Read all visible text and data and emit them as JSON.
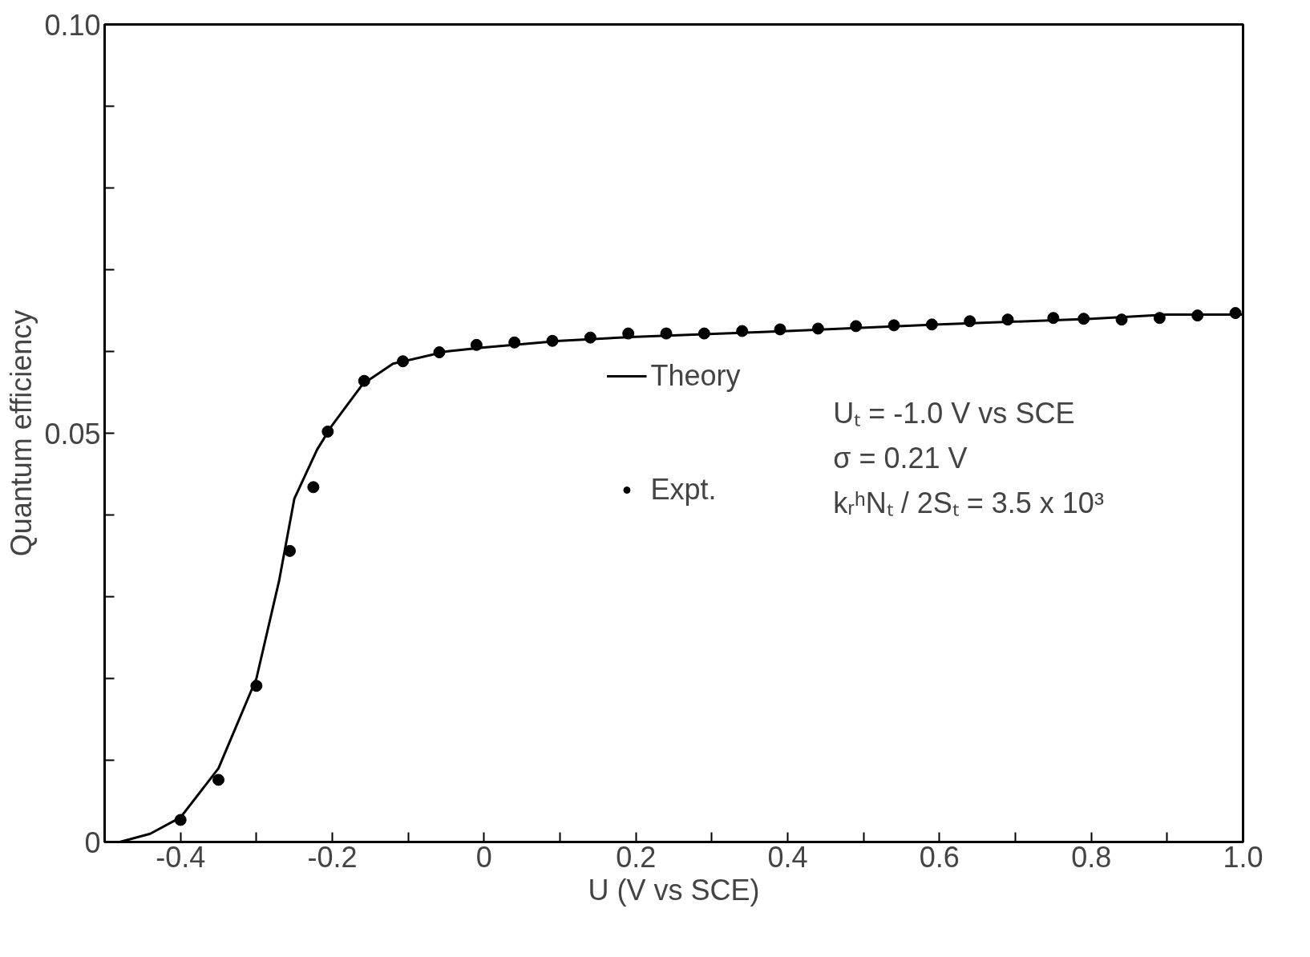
{
  "chart_data": {
    "type": "scatter",
    "xlabel": "U (V vs SCE)",
    "ylabel": "Quantum efficiency",
    "xlim": [
      -0.5,
      1.0
    ],
    "ylim": [
      0,
      0.1
    ],
    "xticks": [
      {
        "value": -0.4,
        "label": "-0.4"
      },
      {
        "value": -0.3,
        "label": null
      },
      {
        "value": -0.2,
        "label": "-0.2"
      },
      {
        "value": -0.1,
        "label": null
      },
      {
        "value": 0,
        "label": "0"
      },
      {
        "value": 0.1,
        "label": null
      },
      {
        "value": 0.2,
        "label": "0.2"
      },
      {
        "value": 0.3,
        "label": null
      },
      {
        "value": 0.4,
        "label": "0.4"
      },
      {
        "value": 0.5,
        "label": null
      },
      {
        "value": 0.6,
        "label": "0.6"
      },
      {
        "value": 0.7,
        "label": null
      },
      {
        "value": 0.8,
        "label": "0.8"
      },
      {
        "value": 0.9,
        "label": null
      },
      {
        "value": 1.0,
        "label": "1.0"
      }
    ],
    "yticks": [
      0,
      {
        "value": 0.01,
        "label": null
      },
      {
        "value": 0.02,
        "label": null
      },
      {
        "value": 0.03,
        "label": null
      },
      {
        "value": 0.04,
        "label": null
      },
      {
        "value": 0.05,
        "label": "0.05"
      },
      {
        "value": 0.06,
        "label": null
      },
      {
        "value": 0.07,
        "label": null
      },
      {
        "value": 0.08,
        "label": null
      },
      {
        "value": 0.09,
        "label": null
      },
      {
        "value": 0.1,
        "label": "0.10"
      }
    ],
    "grid": false,
    "legend": "center",
    "series": [
      {
        "name": "Theory",
        "type": "line",
        "color": "#000000",
        "line_style": "solid",
        "marker": "none",
        "x": [
          -0.48,
          -0.44,
          -0.4,
          -0.35,
          -0.3,
          -0.27,
          -0.25,
          -0.22,
          -0.2,
          -0.16,
          -0.12,
          -0.05,
          0,
          0.1,
          0.2,
          0.4,
          0.6,
          0.8,
          0.9,
          1.0
        ],
        "values": [
          0,
          0.001,
          0.003,
          0.009,
          0.02,
          0.032,
          0.042,
          0.048,
          0.051,
          0.056,
          0.0585,
          0.06,
          0.0605,
          0.0613,
          0.0618,
          0.0625,
          0.0633,
          0.064,
          0.0645,
          0.0645
        ]
      },
      {
        "name": "Expt.",
        "color": "#000000",
        "marker": "circle",
        "x": [
          -0.4,
          -0.35,
          -0.3,
          -0.256,
          -0.225,
          -0.206,
          -0.158,
          -0.107,
          -0.059,
          -0.01,
          0.04,
          0.09,
          0.14,
          0.19,
          0.24,
          0.29,
          0.34,
          0.39,
          0.44,
          0.49,
          0.54,
          0.59,
          0.64,
          0.69,
          0.75,
          0.79,
          0.84,
          0.89,
          0.94,
          0.99
        ],
        "values": [
          0.0027,
          0.0076,
          0.0191,
          0.0356,
          0.0434,
          0.0502,
          0.0564,
          0.0588,
          0.0599,
          0.0608,
          0.0611,
          0.0613,
          0.0617,
          0.0622,
          0.0622,
          0.0622,
          0.0625,
          0.0627,
          0.0628,
          0.0631,
          0.0632,
          0.0633,
          0.0637,
          0.0639,
          0.0641,
          0.064,
          0.0639,
          0.0641,
          0.0644,
          0.0647
        ]
      }
    ],
    "annotations": [
      "Uₜ = -1.0 V vs SCE",
      "σ = 0.21 V",
      "kᵣʰNₜ / 2Sₜ = 3.5 x 10³"
    ]
  }
}
